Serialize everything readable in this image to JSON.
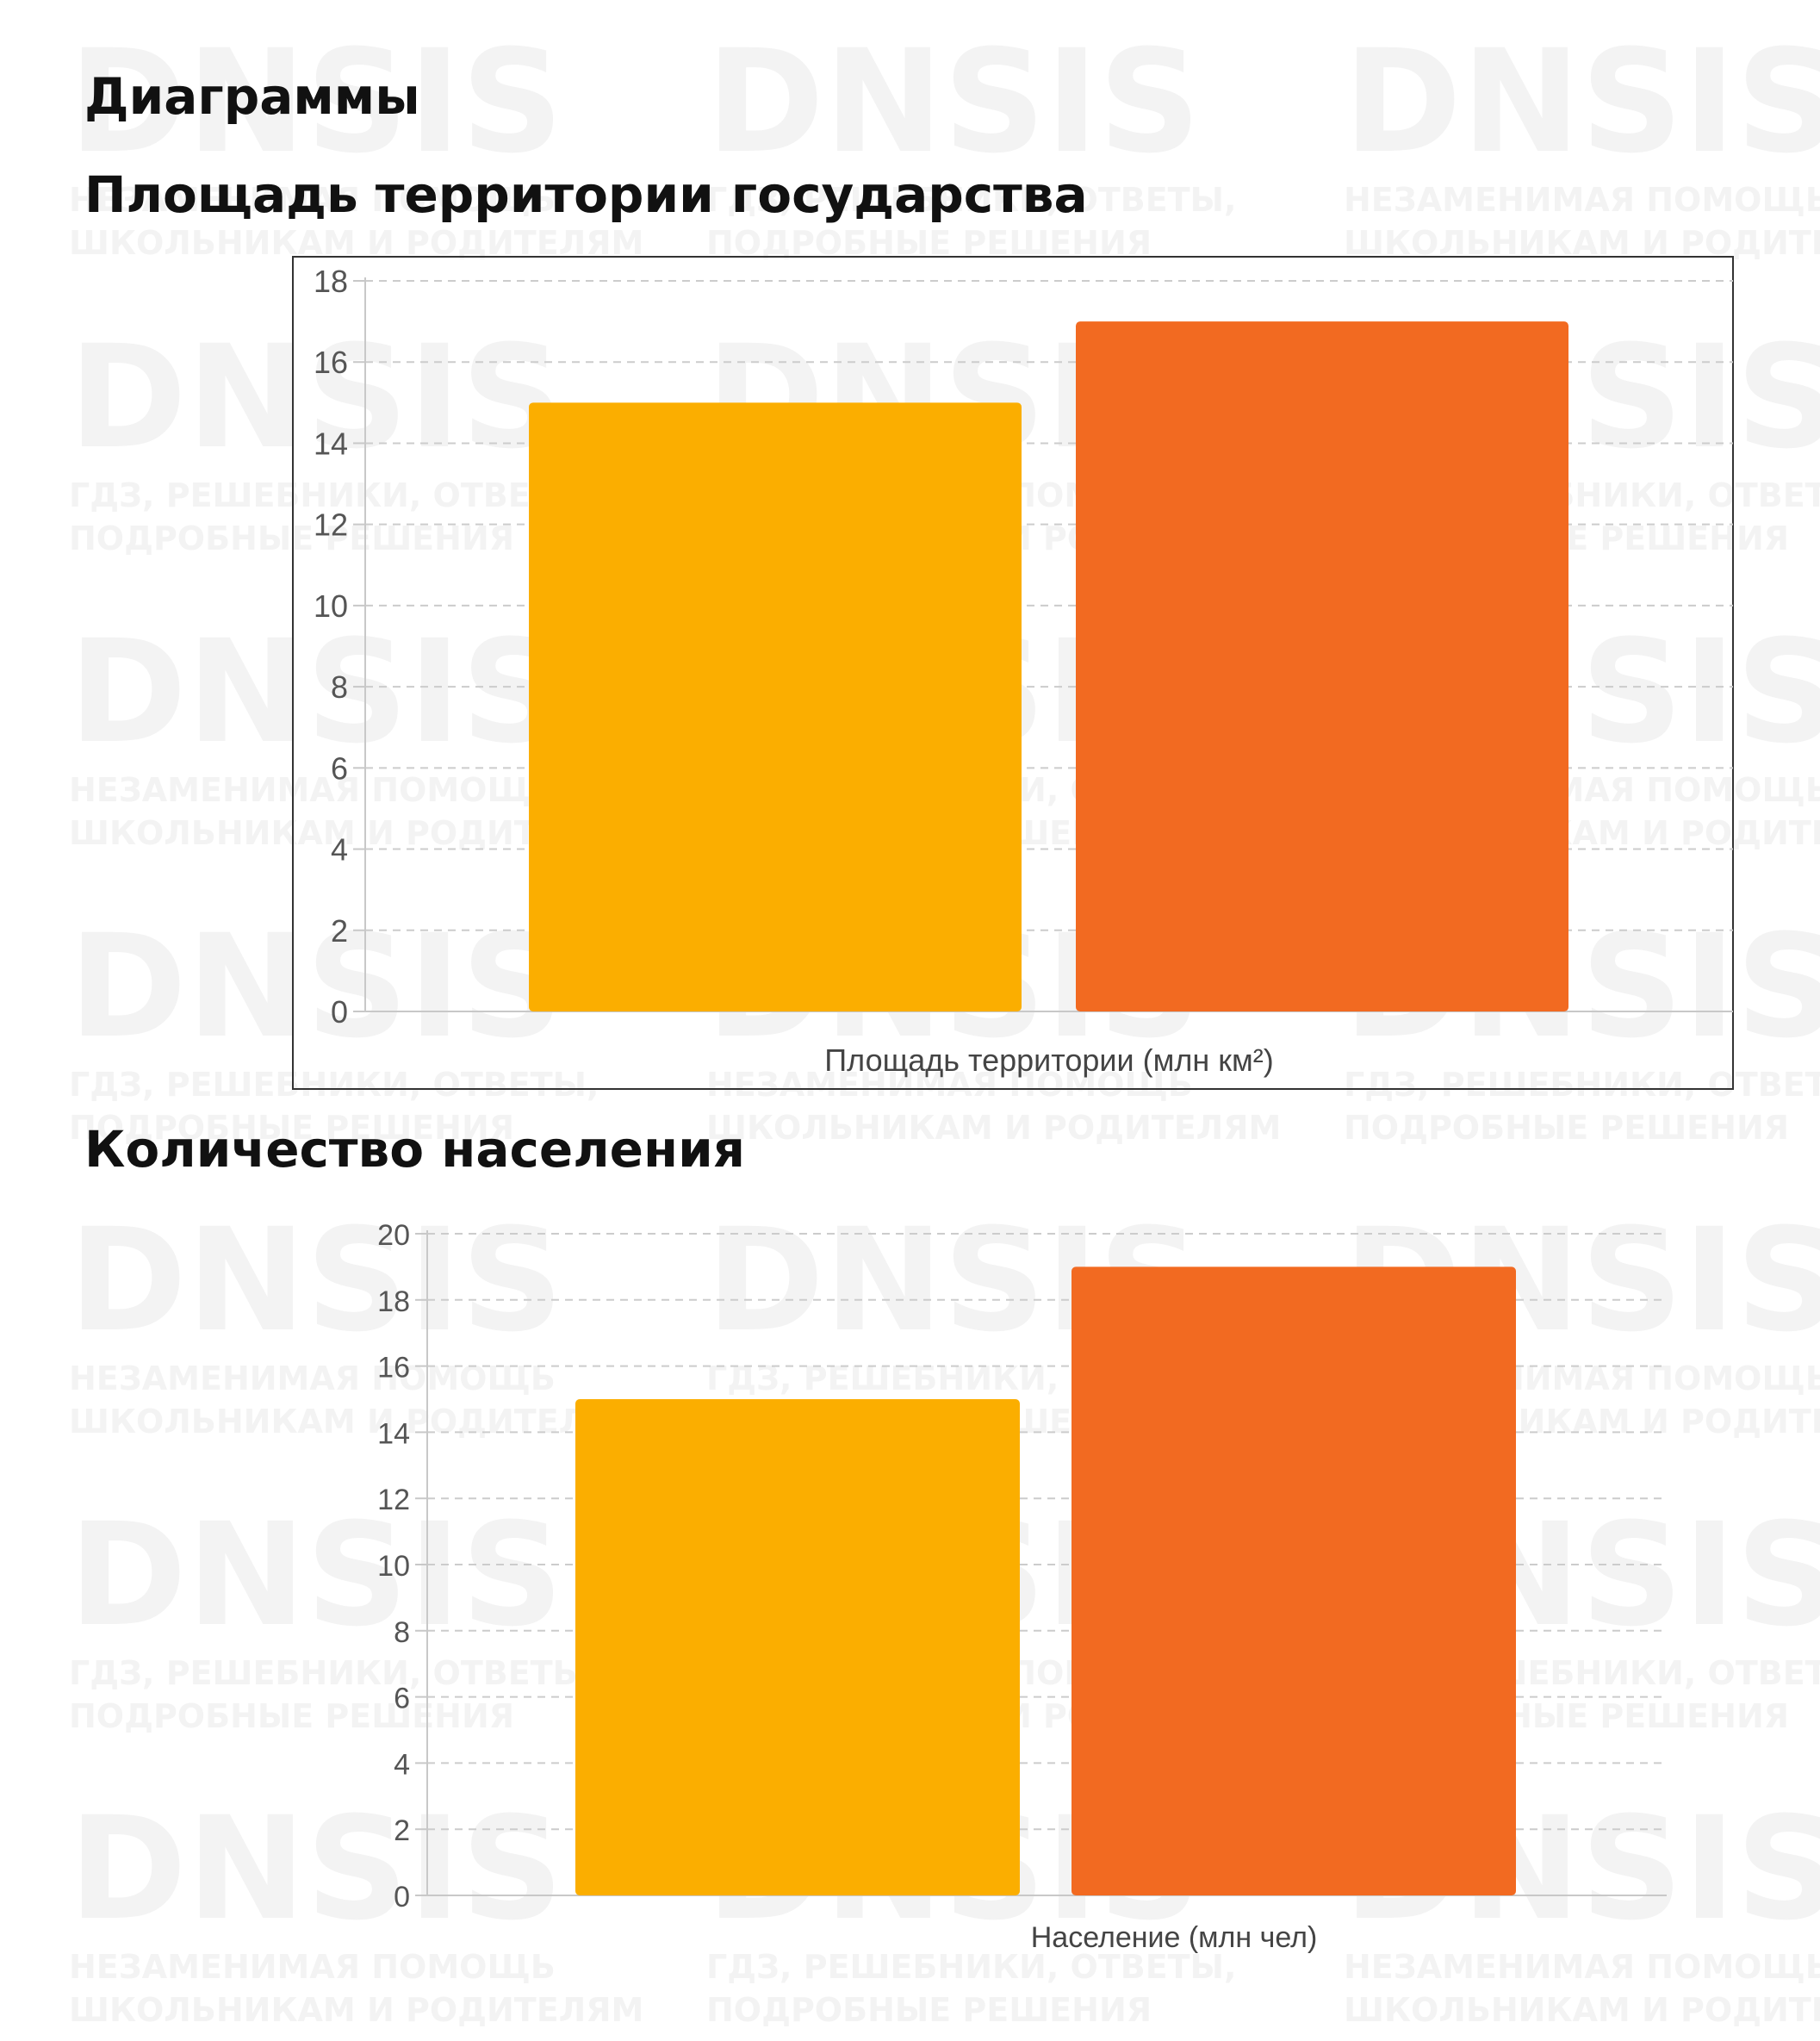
{
  "page_title": "Диаграммы",
  "watermark": {
    "brand": "DNSIS",
    "line_a1": "ГДЗ, РЕШЕБНИКИ, ОТВЕТЫ,",
    "line_a2": "ПОДРОБНЫЕ РЕШЕНИЯ",
    "line_b1": "НЕЗАМЕНИМАЯ ПОМОЩЬ",
    "line_b2": "ШКОЛЬНИКАМ И РОДИТЕЛЯМ"
  },
  "colors": {
    "bar_1": "#FBAE00",
    "bar_2": "#F26A21",
    "grid": "#cccccc",
    "axis": "#c8c8c8",
    "tick_text": "#555555"
  },
  "chart_data": [
    {
      "type": "bar",
      "title": "Площадь территории государства",
      "xlabel": "Площадь территории (млн км²)",
      "ylabel": "",
      "ylim": [
        0,
        18
      ],
      "yticks": [
        0,
        2,
        4,
        6,
        8,
        10,
        12,
        14,
        16,
        18
      ],
      "grid": true,
      "values": [
        15,
        17
      ]
    },
    {
      "type": "bar",
      "title": "Количество населения",
      "xlabel": "Население (млн чел)",
      "ylabel": "",
      "ylim": [
        0,
        20
      ],
      "yticks": [
        0,
        2,
        4,
        6,
        8,
        10,
        12,
        14,
        16,
        18,
        20
      ],
      "grid": true,
      "values": [
        15,
        19
      ]
    }
  ]
}
